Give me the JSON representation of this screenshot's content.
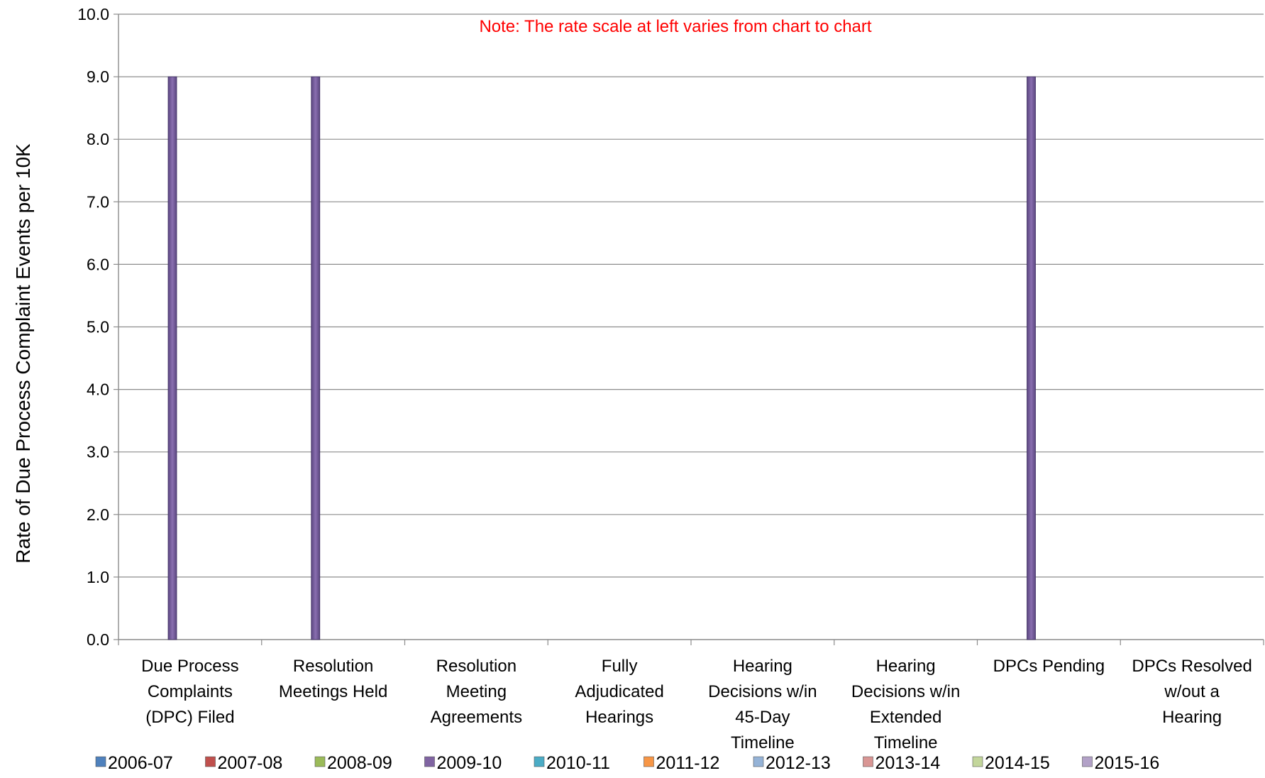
{
  "chart_data": {
    "type": "bar",
    "ylabel": "Rate of Due Process Complaint Events per 10K",
    "ylim": [
      0,
      10
    ],
    "yticks": [
      "0.0",
      "1.0",
      "2.0",
      "3.0",
      "4.0",
      "5.0",
      "6.0",
      "7.0",
      "8.0",
      "9.0",
      "10.0"
    ],
    "grid": true,
    "note": "Note:  The rate scale at left varies from chart to chart",
    "note_color": "#ff0000",
    "legend_position": "bottom",
    "categories": [
      [
        "Due Process",
        "Complaints",
        "(DPC) Filed"
      ],
      [
        "Resolution",
        "Meetings Held"
      ],
      [
        "Resolution",
        "Meeting",
        "Agreements"
      ],
      [
        "Fully",
        "Adjudicated",
        "Hearings"
      ],
      [
        "Hearing",
        "Decisions w/in",
        "45-Day",
        "Timeline"
      ],
      [
        "Hearing",
        "Decisions w/in",
        "Extended",
        "Timeline"
      ],
      [
        "DPCs Pending"
      ],
      [
        "DPCs Resolved",
        "w/out a",
        "Hearing"
      ]
    ],
    "series": [
      {
        "name": "2006-07",
        "color": "#4f81bd",
        "values": [
          0,
          0,
          0,
          0,
          0,
          0,
          0,
          0
        ]
      },
      {
        "name": "2007-08",
        "color": "#c0504d",
        "values": [
          0,
          0,
          0,
          0,
          0,
          0,
          0,
          0
        ]
      },
      {
        "name": "2008-09",
        "color": "#9bbb59",
        "values": [
          0,
          0,
          0,
          0,
          0,
          0,
          0,
          0
        ]
      },
      {
        "name": "2009-10",
        "color": "#8064a2",
        "values": [
          9.0,
          9.0,
          0,
          0,
          0,
          0,
          9.0,
          0
        ]
      },
      {
        "name": "2010-11",
        "color": "#4bacc6",
        "values": [
          0,
          0,
          0,
          0,
          0,
          0,
          0,
          0
        ]
      },
      {
        "name": "2011-12",
        "color": "#f79646",
        "values": [
          0,
          0,
          0,
          0,
          0,
          0,
          0,
          0
        ]
      },
      {
        "name": "2012-13",
        "color": "#95b3d7",
        "values": [
          0,
          0,
          0,
          0,
          0,
          0,
          0,
          0
        ]
      },
      {
        "name": "2013-14",
        "color": "#d99694",
        "values": [
          0,
          0,
          0,
          0,
          0,
          0,
          0,
          0
        ]
      },
      {
        "name": "2014-15",
        "color": "#c3d69b",
        "values": [
          0,
          0,
          0,
          0,
          0,
          0,
          0,
          0
        ]
      },
      {
        "name": "2015-16",
        "color": "#b2a1c7",
        "values": [
          0,
          0,
          0,
          0,
          0,
          0,
          0,
          0
        ]
      }
    ]
  }
}
